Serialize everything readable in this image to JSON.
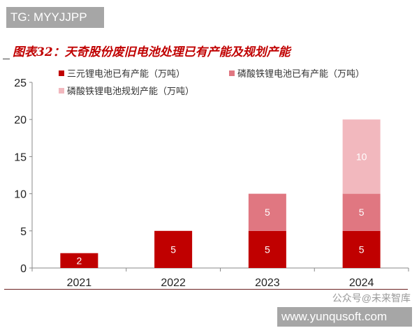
{
  "watermark_tag": "TG: MYYJJPP",
  "watermark_site": "www.yunqusoft.com",
  "watermark_brand": "公众号@未来智库",
  "chart_data": {
    "type": "bar",
    "stacked": true,
    "title": "图表32：天奇股份废旧电池处理已有产能及规划产能",
    "categories": [
      "2021",
      "2022",
      "2023",
      "2024"
    ],
    "series": [
      {
        "name": "三元锂电池已有产能（万吨）",
        "color": "#c00000",
        "values": [
          2,
          5,
          5,
          5
        ]
      },
      {
        "name": "磷酸铁锂电池已有产能（万吨）",
        "color": "#e07781",
        "values": [
          0,
          0,
          5,
          5
        ]
      },
      {
        "name": "磷酸铁锂电池规划产能（万吨）",
        "color": "#f2b8be",
        "values": [
          0,
          0,
          0,
          10
        ]
      }
    ],
    "yticks": [
      "0",
      "5",
      "10",
      "15",
      "20",
      "25"
    ],
    "ylim": [
      0,
      25
    ],
    "grid": false,
    "legend": "top"
  }
}
